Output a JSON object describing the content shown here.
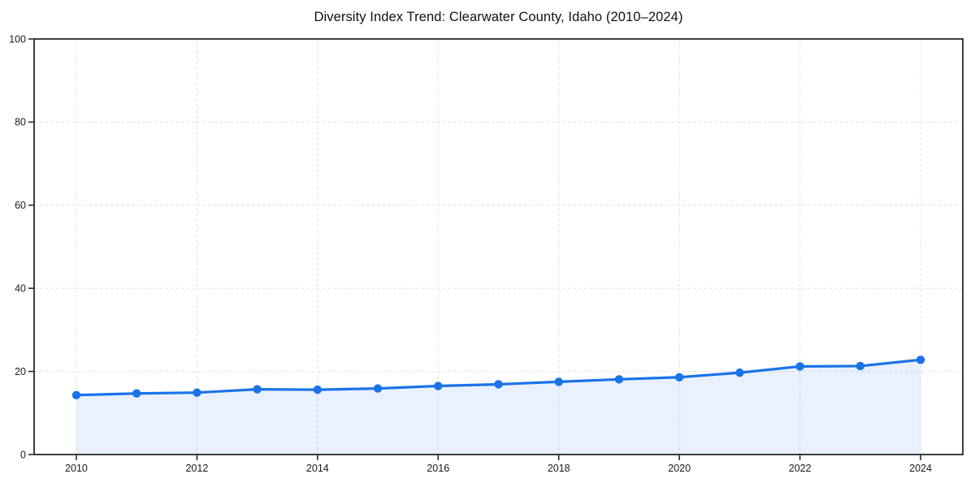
{
  "chart_data": {
    "type": "line",
    "title": "Diversity Index Trend: Clearwater County, Idaho (2010–2024)",
    "x": [
      2010,
      2011,
      2012,
      2013,
      2014,
      2015,
      2016,
      2017,
      2018,
      2019,
      2020,
      2021,
      2022,
      2023,
      2024
    ],
    "series": [
      {
        "name": "Diversity Index",
        "values": [
          14.3,
          14.7,
          14.9,
          15.7,
          15.6,
          15.9,
          16.5,
          16.9,
          17.5,
          18.1,
          18.6,
          19.7,
          21.2,
          21.3,
          22.8
        ]
      }
    ],
    "xlabel": "",
    "ylabel": "",
    "xlim": [
      2009.3,
      2024.7
    ],
    "ylim": [
      0,
      100
    ],
    "xticks": [
      2010,
      2012,
      2014,
      2016,
      2018,
      2020,
      2022,
      2024
    ],
    "yticks": [
      0,
      20,
      40,
      60,
      80,
      100
    ],
    "grid": true,
    "grid_style": "dashed",
    "legend": "none",
    "area_under_line": true,
    "marker": "circle",
    "colors": {
      "line": "#1a73e8",
      "marker": "#1a73e8",
      "area_fill": "rgba(26,115,232,0.10)",
      "grid": "#e2e2e2",
      "spine": "#1c1c1c",
      "tick_label": "#1a1a1a",
      "background": "#ffffff"
    }
  }
}
